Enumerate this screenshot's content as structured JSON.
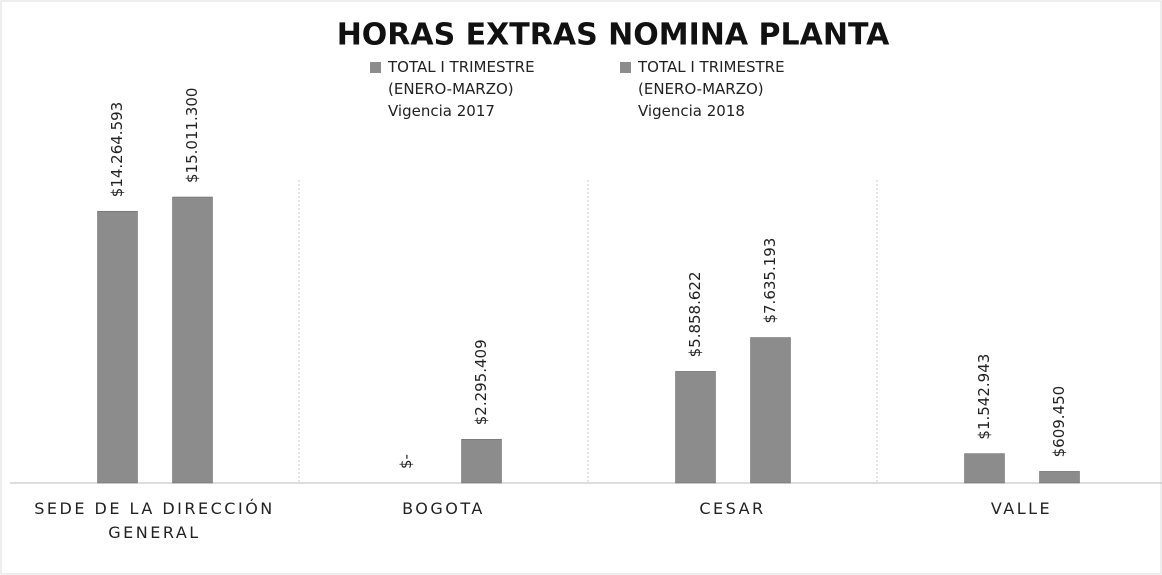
{
  "chart_data": {
    "type": "bar",
    "title": "HORAS EXTRAS NOMINA PLANTA",
    "categories": [
      "SEDE DE LA DIRECCIÓN GENERAL",
      "BOGOTA",
      "CESAR",
      "VALLE"
    ],
    "series": [
      {
        "name": "TOTAL I TRIMESTRE (ENERO-MARZO) Vigencia 2017",
        "color": "#8c8c8c",
        "values": [
          14264593,
          0,
          5858622,
          1542943
        ],
        "value_labels": [
          "$14.264.593",
          "$-",
          "$5.858.622",
          "$1.542.943"
        ]
      },
      {
        "name": "TOTAL I TRIMESTRE (ENERO-MARZO) Vigencia 2018",
        "color": "#8c8c8c",
        "values": [
          15011300,
          2295409,
          7635193,
          609450
        ],
        "value_labels": [
          "$15.011.300",
          "$2.295.409",
          "$7.635.193",
          "$609.450"
        ]
      }
    ]
  }
}
